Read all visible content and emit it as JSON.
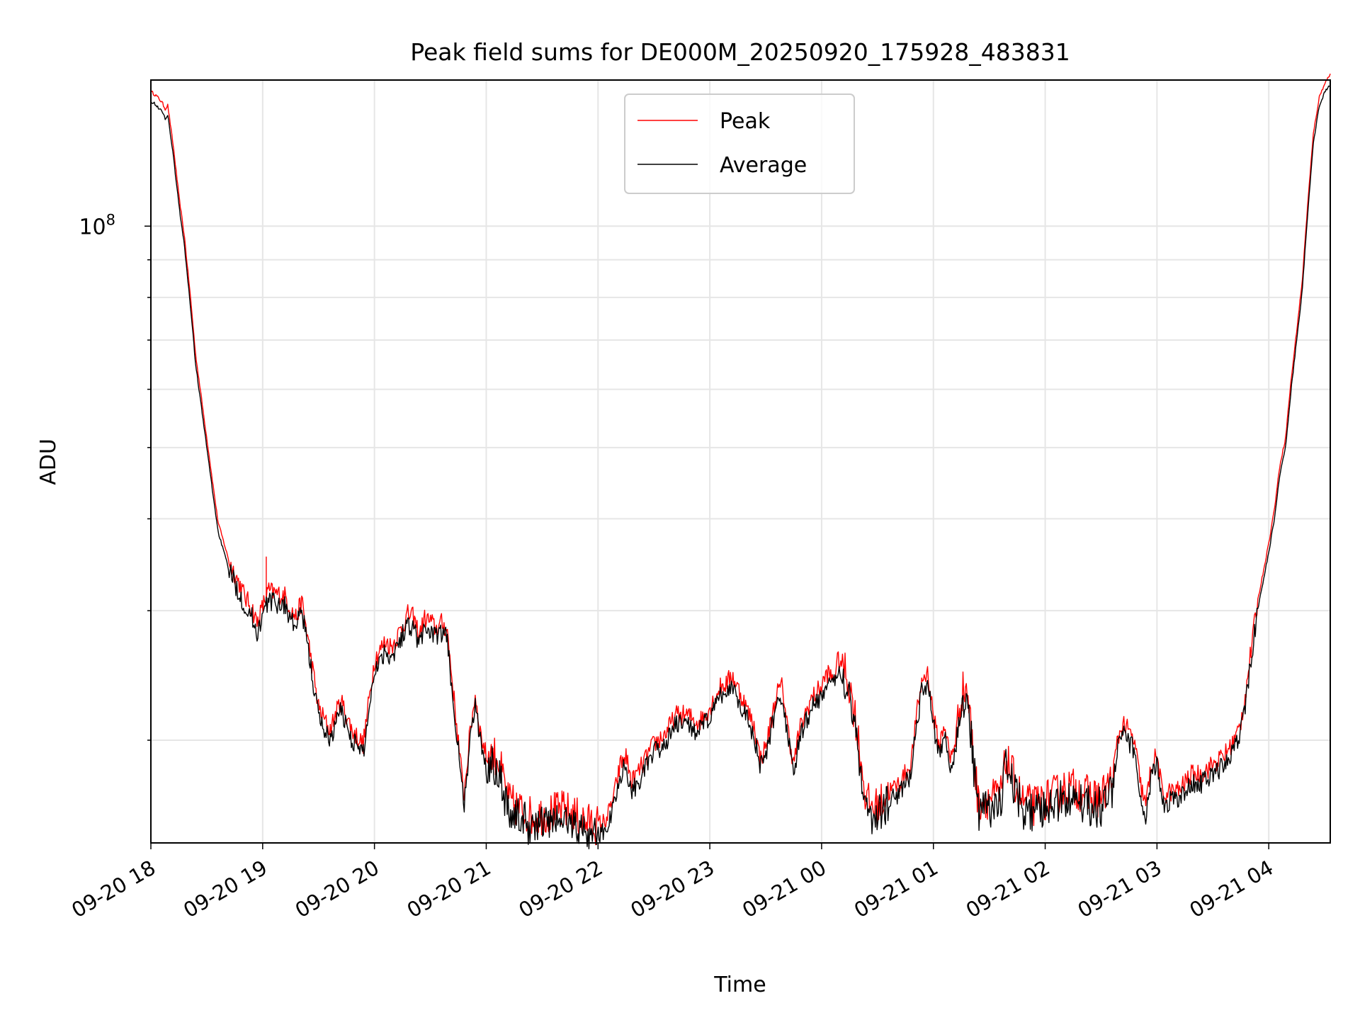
{
  "chart_data": {
    "type": "line",
    "title": "Peak field sums for DE000M_20250920_175928_483831",
    "xlabel": "Time",
    "ylabel": "ADU",
    "yscale": "log",
    "ylim": [
      14500000,
      158000000
    ],
    "xlim_hours": [
      0,
      10.55
    ],
    "x_ticks": [
      {
        "h": 0,
        "label": "09-20 18"
      },
      {
        "h": 1,
        "label": "09-20 19"
      },
      {
        "h": 2,
        "label": "09-20 20"
      },
      {
        "h": 3,
        "label": "09-20 21"
      },
      {
        "h": 4,
        "label": "09-20 22"
      },
      {
        "h": 5,
        "label": "09-20 23"
      },
      {
        "h": 6,
        "label": "09-21 00"
      },
      {
        "h": 7,
        "label": "09-21 01"
      },
      {
        "h": 8,
        "label": "09-21 02"
      },
      {
        "h": 9,
        "label": "09-21 03"
      },
      {
        "h": 10,
        "label": "09-21 04"
      }
    ],
    "y_major_tick": {
      "value": 100000000,
      "base": "10",
      "exp": "8"
    },
    "y_minor_ticks": [
      20000000,
      30000000,
      40000000,
      50000000,
      60000000,
      70000000,
      80000000,
      90000000
    ],
    "grid": true,
    "legend_position": "top-center",
    "series": [
      {
        "name": "Peak",
        "color": "#ff0000",
        "offset": 1.03,
        "spikes": [
          [
            1.03,
            35500000
          ],
          [
            2.45,
            29500000
          ]
        ],
        "x_hours": [
          0,
          0.05,
          0.1,
          0.13,
          0.15,
          0.2,
          0.25,
          0.3,
          0.35,
          0.4,
          0.5,
          0.6,
          0.7,
          0.8,
          0.85,
          0.9,
          0.95,
          1.0,
          1.05,
          1.1,
          1.2,
          1.25,
          1.3,
          1.35,
          1.4,
          1.5,
          1.6,
          1.7,
          1.75,
          1.8,
          1.9,
          2.0,
          2.1,
          2.15,
          2.2,
          2.25,
          2.3,
          2.35,
          2.4,
          2.45,
          2.5,
          2.55,
          2.6,
          2.65,
          2.7,
          2.8,
          2.85,
          2.9,
          2.95,
          3.0,
          3.1,
          3.2,
          3.4,
          3.6,
          3.7,
          3.8,
          3.9,
          4.0,
          4.05,
          4.1,
          4.15,
          4.2,
          4.25,
          4.3,
          4.4,
          4.5,
          4.6,
          4.7,
          4.8,
          4.9,
          5.0,
          5.1,
          5.15,
          5.2,
          5.3,
          5.4,
          5.45,
          5.5,
          5.6,
          5.65,
          5.7,
          5.75,
          5.8,
          5.9,
          6.0,
          6.05,
          6.1,
          6.15,
          6.2,
          6.25,
          6.3,
          6.4,
          6.5,
          6.6,
          6.7,
          6.8,
          6.85,
          6.9,
          6.95,
          7.0,
          7.05,
          7.1,
          7.15,
          7.2,
          7.25,
          7.3,
          7.4,
          7.5,
          7.6,
          7.65,
          7.7,
          7.8,
          7.9,
          8.0,
          8.1,
          8.2,
          8.3,
          8.4,
          8.5,
          8.6,
          8.65,
          8.7,
          8.8,
          8.85,
          8.9,
          8.95,
          9.0,
          9.05,
          9.1,
          9.2,
          9.3,
          9.4,
          9.5,
          9.6,
          9.7,
          9.75,
          9.8,
          9.9,
          10.0,
          10.05,
          10.1,
          10.15,
          10.2,
          10.25,
          10.3,
          10.35,
          10.4,
          10.45,
          10.5,
          10.55
        ],
        "y": [
          148000000,
          146000000,
          143000000,
          140000000,
          142000000,
          125000000,
          107000000,
          94000000,
          79000000,
          65000000,
          50000000,
          38500000,
          34000000,
          31500000,
          30200000,
          29500000,
          28000000,
          29500000,
          31000000,
          30800000,
          30500000,
          29200000,
          28500000,
          30000000,
          27000000,
          21500000,
          20000000,
          22000000,
          21000000,
          20000000,
          19200000,
          25000000,
          26500000,
          26000000,
          26800000,
          27800000,
          28800000,
          28500000,
          27000000,
          28400000,
          28200000,
          27500000,
          28000000,
          27500000,
          23000000,
          16300000,
          19500000,
          22400000,
          19800000,
          18500000,
          18500000,
          16000000,
          15300000,
          15500000,
          15600000,
          15300000,
          15000000,
          14900000,
          15000000,
          15500000,
          16500000,
          18000000,
          18500000,
          17000000,
          18000000,
          19200000,
          19800000,
          21000000,
          21000000,
          20500000,
          21500000,
          23000000,
          23200000,
          23800000,
          22000000,
          20200000,
          18300000,
          19000000,
          22500000,
          23000000,
          20000000,
          18000000,
          20000000,
          22000000,
          23000000,
          24000000,
          23500000,
          25000000,
          24500000,
          23000000,
          21000000,
          16000000,
          15700000,
          16500000,
          17000000,
          18000000,
          21000000,
          23500000,
          24000000,
          21000000,
          19000000,
          20500000,
          18200000,
          19500000,
          22500000,
          23000000,
          16000000,
          16200000,
          16300000,
          18300000,
          17500000,
          16000000,
          15800000,
          16100000,
          16400000,
          16800000,
          16600000,
          16300000,
          16200000,
          17200000,
          19500000,
          20500000,
          19300000,
          17000000,
          15800000,
          18000000,
          18500000,
          16300000,
          16500000,
          16600000,
          17400000,
          17500000,
          18000000,
          18500000,
          19500000,
          20500000,
          23000000,
          30000000,
          36000000,
          40000000,
          46000000,
          50000000,
          60000000,
          70000000,
          82000000,
          105000000,
          130000000,
          145000000,
          152000000,
          156000000
        ]
      },
      {
        "name": "Average",
        "color": "#000000",
        "offset": 1.0,
        "spikes": []
      }
    ]
  }
}
